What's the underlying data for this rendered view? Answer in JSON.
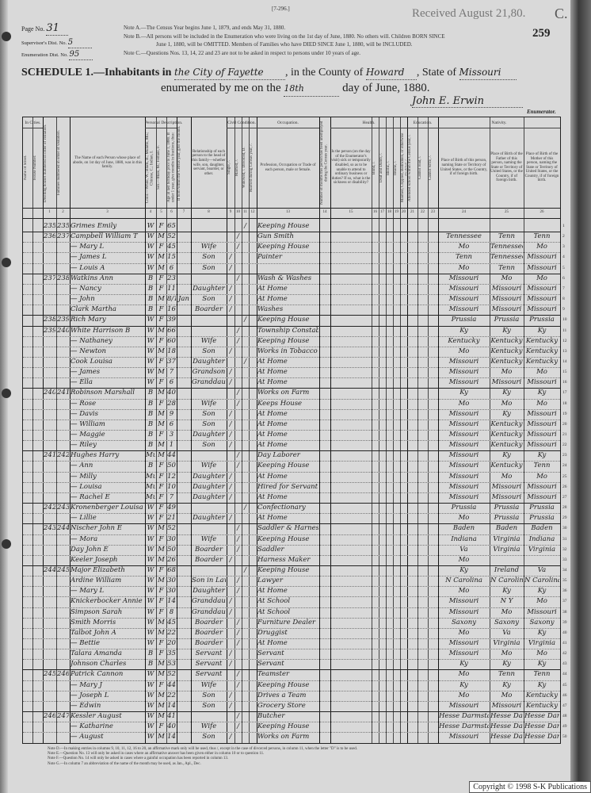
{
  "form_number": "[7-296.]",
  "received_stamp": "Received August 21,80.",
  "stamp_letter": "C.",
  "sheet_number": "259",
  "page_no": {
    "label": "Page No.",
    "value": "31"
  },
  "supervisor_dist": {
    "label": "Supervisor's Dist. No.",
    "value": "5"
  },
  "enumeration_dist": {
    "label": "Enumeration Dist. No.",
    "value": "95"
  },
  "notes_top": [
    "Note A.—The Census Year begins June 1, 1879, and ends May 31, 1880.",
    "Note B.—All persons will be included in the Enumeration who were living on the 1st day of June, 1880. No others will. Children BORN SINCE",
    "June 1, 1880, will be OMITTED. Members of Families who have DIED SINCE June 1, 1880, will be INCLUDED.",
    "Note C.—Questions Nos. 13, 14, 22 and 23 are not to be asked in respect to persons under 10 years of age."
  ],
  "schedule": {
    "prefix": "SCHEDULE 1.—Inhabitants in",
    "place": "the City of Fayette",
    "county_label": ", in the County of",
    "county": "Howard",
    "state_label": ", State of",
    "state": "Missouri",
    "enumerated_label": "enumerated by me on the",
    "day": "18th",
    "day_suffix": "day of June, 1880.",
    "enumerator_signature": "John E. Erwin",
    "enumerator_label": "Enumerator."
  },
  "column_groups": {
    "in_cities": "In Cities.",
    "personal": "Personal Description.",
    "civil": "Civil Condition.",
    "occupation": "Occupation.",
    "health": "Health.",
    "education": "Education.",
    "nativity": "Nativity."
  },
  "column_headers": {
    "street": "Name of Street.",
    "house": "House Number.",
    "c1": "Dwelling houses numbered in order of visitation.",
    "c2": "Families numbered in order of visitation.",
    "c3": "The Name of each Person whose place of abode, on 1st day of June, 1880, was in this family.",
    "c4": "Color.—White, W.; Black, B.; Mulatto, Mu.; Chinese, C.; Indian, I.",
    "c5": "Sex.—Male, M.; Female, F.",
    "c6": "Age at last birthday prior to June 1, 1880. If under 1 year, give months in fractions, thus: 3/12.",
    "c7": "If born within the Census year, give the month.",
    "c8": "Relationship of each person to the head of this family—whether wife, son, daughter, servant, boarder, or other.",
    "c9": "Single, /.",
    "c10": "Married, /.",
    "c11": "Widowed, /. Divorced, D.",
    "c12": "Married during Census year, /.",
    "c13": "Profession, Occupation or Trade of each person, male or female.",
    "c14": "Number of months this person has been unemployed during the Census year.",
    "c15": "Is the person (on the day of the Enumerator's visit) sick or temporarily disabled, so as to be unable to attend to ordinary business or duties? If so, what is the sickness or disability?",
    "c16": "Blind, /.",
    "c17": "Deaf and Dumb, /.",
    "c18": "Idiotic, /.",
    "c19": "Insane, /.",
    "c20": "Maimed, Crippled, Bedridden, or otherwise disabled, /.",
    "c21": "Attended school within the Census year, /.",
    "c22": "Cannot read, /.",
    "c23": "Cannot write, /.",
    "c24": "Place of Birth of this person, naming State or Territory of United States, or the Country, if of foreign birth.",
    "c25": "Place of Birth of the Father of this person, naming the State or Territory of United States, or the Country, if of foreign birth.",
    "c26": "Place of Birth of the Mother of this person, naming the State or Territory of United States, or the Country, if of foreign birth."
  },
  "column_numbers": [
    "1",
    "2",
    "3",
    "4",
    "5",
    "6",
    "7",
    "8",
    "9",
    "10",
    "11",
    "12",
    "13",
    "14",
    "15",
    "16",
    "17",
    "18",
    "19",
    "20",
    "21",
    "22",
    "23",
    "24",
    "25",
    "26"
  ],
  "rows": [
    {
      "line": "1",
      "dw": "235",
      "fam": "235",
      "name": "Grimes Emily",
      "color": "W",
      "sex": "F",
      "age": "65",
      "month": "",
      "rel": "",
      "cond": "11",
      "occ": "Keeping House",
      "bp": "",
      "fbp": "",
      "mbp": ""
    },
    {
      "line": "2",
      "dw": "236",
      "fam": "237",
      "name": "Campbell William T",
      "color": "W",
      "sex": "M",
      "age": "52",
      "month": "",
      "rel": "",
      "cond": "10",
      "occ": "Gun Smith",
      "bp": "Tennessee",
      "fbp": "Tenn",
      "mbp": "Tenn"
    },
    {
      "line": "3",
      "dw": "",
      "fam": "",
      "name": "— Mary L",
      "color": "W",
      "sex": "F",
      "age": "45",
      "month": "",
      "rel": "Wife",
      "cond": "10",
      "occ": "Keeping House",
      "bp": "Mo",
      "fbp": "Tennessee",
      "mbp": "Mo"
    },
    {
      "line": "4",
      "dw": "",
      "fam": "",
      "name": "— James L",
      "color": "W",
      "sex": "M",
      "age": "15",
      "month": "",
      "rel": "Son",
      "cond": "9",
      "occ": "Painter",
      "bp": "Tenn",
      "fbp": "Tennessee",
      "mbp": "Missouri"
    },
    {
      "line": "5",
      "dw": "",
      "fam": "",
      "name": "— Louis A",
      "color": "W",
      "sex": "M",
      "age": "6",
      "month": "",
      "rel": "Son",
      "cond": "9",
      "occ": "",
      "bp": "Mo",
      "fbp": "Tenn",
      "mbp": "Missouri"
    },
    {
      "line": "6",
      "dw": "237",
      "fam": "238",
      "name": "Watkins Ann",
      "color": "B",
      "sex": "F",
      "age": "23",
      "month": "",
      "rel": "",
      "cond": "10",
      "occ": "Wash & Washes",
      "bp": "Missouri",
      "fbp": "Mo",
      "mbp": "Mo"
    },
    {
      "line": "7",
      "dw": "",
      "fam": "",
      "name": "— Nancy",
      "color": "B",
      "sex": "F",
      "age": "11",
      "month": "",
      "rel": "Daughter",
      "cond": "9",
      "occ": "At Home",
      "bp": "Missouri",
      "fbp": "Missouri",
      "mbp": "Missouri"
    },
    {
      "line": "8",
      "dw": "",
      "fam": "",
      "name": "— John",
      "color": "B",
      "sex": "M",
      "age": "8/12",
      "month": "Jan",
      "rel": "Son",
      "cond": "9",
      "occ": "At Home",
      "bp": "Missouri",
      "fbp": "Missouri",
      "mbp": "Missouri"
    },
    {
      "line": "9",
      "dw": "",
      "fam": "",
      "name": "Clark Martha",
      "color": "B",
      "sex": "F",
      "age": "16",
      "month": "",
      "rel": "Boarder",
      "cond": "9",
      "occ": "Washes",
      "bp": "Missouri",
      "fbp": "Missouri",
      "mbp": "Missouri"
    },
    {
      "line": "10",
      "dw": "238",
      "fam": "239",
      "name": "Rich Mary",
      "color": "W",
      "sex": "F",
      "age": "39",
      "month": "",
      "rel": "",
      "cond": "11",
      "occ": "Keeping House",
      "bp": "Prussia",
      "fbp": "Prussia",
      "mbp": "Prussia"
    },
    {
      "line": "11",
      "dw": "239",
      "fam": "240",
      "name": "White Harrison B",
      "color": "W",
      "sex": "M",
      "age": "66",
      "month": "",
      "rel": "",
      "cond": "10",
      "occ": "Township Constable",
      "bp": "Ky",
      "fbp": "Ky",
      "mbp": "Ky"
    },
    {
      "line": "12",
      "dw": "",
      "fam": "",
      "name": "— Nathaney",
      "color": "W",
      "sex": "F",
      "age": "60",
      "month": "",
      "rel": "Wife",
      "cond": "10",
      "occ": "Keeping House",
      "bp": "Kentucky",
      "fbp": "Kentucky",
      "mbp": "Kentucky"
    },
    {
      "line": "13",
      "dw": "",
      "fam": "",
      "name": "— Newton",
      "color": "W",
      "sex": "M",
      "age": "18",
      "month": "",
      "rel": "Son",
      "cond": "9",
      "occ": "Works in Tobacco Fac",
      "bp": "Mo",
      "fbp": "Kentucky",
      "mbp": "Kentucky"
    },
    {
      "line": "14",
      "dw": "",
      "fam": "",
      "name": "Cook Louisa",
      "color": "W",
      "sex": "F",
      "age": "37",
      "month": "",
      "rel": "Daughter",
      "cond": "11",
      "occ": "At Home",
      "bp": "Missouri",
      "fbp": "Kentucky",
      "mbp": "Kentucky"
    },
    {
      "line": "15",
      "dw": "",
      "fam": "",
      "name": "— James",
      "color": "W",
      "sex": "M",
      "age": "7",
      "month": "",
      "rel": "Grandson",
      "cond": "9",
      "occ": "At Home",
      "bp": "Missouri",
      "fbp": "Mo",
      "mbp": "Mo"
    },
    {
      "line": "16",
      "dw": "",
      "fam": "",
      "name": "— Ella",
      "color": "W",
      "sex": "F",
      "age": "6",
      "month": "",
      "rel": "Granddaughter",
      "cond": "9",
      "occ": "At Home",
      "bp": "Missouri",
      "fbp": "Missouri",
      "mbp": "Missouri"
    },
    {
      "line": "17",
      "dw": "240",
      "fam": "241",
      "name": "Robinson Marshall",
      "color": "B",
      "sex": "M",
      "age": "40",
      "month": "",
      "rel": "",
      "cond": "10",
      "occ": "Works on Farm",
      "bp": "Ky",
      "fbp": "Ky",
      "mbp": "Ky"
    },
    {
      "line": "18",
      "dw": "",
      "fam": "",
      "name": "— Rose",
      "color": "B",
      "sex": "F",
      "age": "28",
      "month": "",
      "rel": "Wife",
      "cond": "10",
      "occ": "Keeps House",
      "bp": "Mo",
      "fbp": "Mo",
      "mbp": "Mo"
    },
    {
      "line": "19",
      "dw": "",
      "fam": "",
      "name": "— Davis",
      "color": "B",
      "sex": "M",
      "age": "9",
      "month": "",
      "rel": "Son",
      "cond": "9",
      "occ": "At Home",
      "bp": "Missouri",
      "fbp": "Ky",
      "mbp": "Missouri"
    },
    {
      "line": "20",
      "dw": "",
      "fam": "",
      "name": "— William",
      "color": "B",
      "sex": "M",
      "age": "6",
      "month": "",
      "rel": "Son",
      "cond": "9",
      "occ": "At Home",
      "bp": "Missouri",
      "fbp": "Kentucky",
      "mbp": "Missouri"
    },
    {
      "line": "21",
      "dw": "",
      "fam": "",
      "name": "— Maggie",
      "color": "B",
      "sex": "F",
      "age": "3",
      "month": "",
      "rel": "Daughter",
      "cond": "9",
      "occ": "At Home",
      "bp": "Missouri",
      "fbp": "Kentucky",
      "mbp": "Missouri"
    },
    {
      "line": "22",
      "dw": "",
      "fam": "",
      "name": "— Riley",
      "color": "B",
      "sex": "M",
      "age": "1",
      "month": "",
      "rel": "Son",
      "cond": "9",
      "occ": "At Home",
      "bp": "Missouri",
      "fbp": "Kentucky",
      "mbp": "Missouri"
    },
    {
      "line": "23",
      "dw": "241",
      "fam": "242",
      "name": "Hughes Harry",
      "color": "Mu",
      "sex": "M",
      "age": "44",
      "month": "",
      "rel": "",
      "cond": "10",
      "occ": "Day Laborer",
      "bp": "Missouri",
      "fbp": "Ky",
      "mbp": "Ky"
    },
    {
      "line": "24",
      "dw": "",
      "fam": "",
      "name": "— Ann",
      "color": "B",
      "sex": "F",
      "age": "50",
      "month": "",
      "rel": "Wife",
      "cond": "10",
      "occ": "Keeping House",
      "bp": "Missouri",
      "fbp": "Kentucky",
      "mbp": "Tenn"
    },
    {
      "line": "25",
      "dw": "",
      "fam": "",
      "name": "— Milly",
      "color": "Mu",
      "sex": "F",
      "age": "12",
      "month": "",
      "rel": "Daughter",
      "cond": "9",
      "occ": "At Home",
      "bp": "Missouri",
      "fbp": "Mo",
      "mbp": "Mo"
    },
    {
      "line": "26",
      "dw": "",
      "fam": "",
      "name": "— Louisa",
      "color": "Mu",
      "sex": "F",
      "age": "10",
      "month": "",
      "rel": "Daughter",
      "cond": "9",
      "occ": "Hired for Servant",
      "bp": "Missouri",
      "fbp": "Missouri",
      "mbp": "Missouri"
    },
    {
      "line": "27",
      "dw": "",
      "fam": "",
      "name": "— Rachel E",
      "color": "Mu",
      "sex": "F",
      "age": "7",
      "month": "",
      "rel": "Daughter",
      "cond": "9",
      "occ": "At Home",
      "bp": "Missouri",
      "fbp": "Missouri",
      "mbp": "Missouri"
    },
    {
      "line": "28",
      "dw": "242",
      "fam": "243",
      "name": "Kronenberger Louisa",
      "color": "W",
      "sex": "F",
      "age": "49",
      "month": "",
      "rel": "",
      "cond": "11",
      "occ": "Confectionary",
      "bp": "Prussia",
      "fbp": "Prussia",
      "mbp": "Prussia"
    },
    {
      "line": "29",
      "dw": "",
      "fam": "",
      "name": "— Lillie",
      "color": "W",
      "sex": "F",
      "age": "21",
      "month": "",
      "rel": "Daughter",
      "cond": "9",
      "occ": "At Home",
      "bp": "Mo",
      "fbp": "Prussia",
      "mbp": "Prussia"
    },
    {
      "line": "30",
      "dw": "243",
      "fam": "244",
      "name": "Nischer John E",
      "color": "W",
      "sex": "M",
      "age": "52",
      "month": "",
      "rel": "",
      "cond": "10",
      "occ": "Saddler & Harness",
      "bp": "Baden",
      "fbp": "Baden",
      "mbp": "Baden"
    },
    {
      "line": "31",
      "dw": "",
      "fam": "",
      "name": "— Mora",
      "color": "W",
      "sex": "F",
      "age": "30",
      "month": "",
      "rel": "Wife",
      "cond": "10",
      "occ": "Keeping House",
      "bp": "Indiana",
      "fbp": "Virginia",
      "mbp": "Indiana"
    },
    {
      "line": "32",
      "dw": "",
      "fam": "",
      "name": "Day John E",
      "color": "W",
      "sex": "M",
      "age": "50",
      "month": "",
      "rel": "Boarder",
      "cond": "10",
      "occ": "Saddler",
      "bp": "Va",
      "fbp": "Virginia",
      "mbp": "Virginia"
    },
    {
      "line": "33",
      "dw": "",
      "fam": "",
      "name": "Keeler Joseph",
      "color": "W",
      "sex": "M",
      "age": "26",
      "month": "",
      "rel": "Boarder",
      "cond": "9",
      "occ": "Harness Maker",
      "bp": "Mo",
      "fbp": "",
      "mbp": ""
    },
    {
      "line": "34",
      "dw": "244",
      "fam": "245",
      "name": "Major Elizabeth",
      "color": "W",
      "sex": "F",
      "age": "68",
      "month": "",
      "rel": "",
      "cond": "11",
      "occ": "Keeping House",
      "bp": "Ky",
      "fbp": "Ireland",
      "mbp": "Va"
    },
    {
      "line": "35",
      "dw": "",
      "fam": "",
      "name": "Ardine William",
      "color": "W",
      "sex": "M",
      "age": "30",
      "month": "",
      "rel": "Son in Law",
      "cond": "10",
      "occ": "Lawyer",
      "bp": "N Carolina",
      "fbp": "N Carolina",
      "mbp": "N Carolina"
    },
    {
      "line": "36",
      "dw": "",
      "fam": "",
      "name": "— Mary L",
      "color": "W",
      "sex": "F",
      "age": "30",
      "month": "",
      "rel": "Daughter",
      "cond": "10",
      "occ": "At Home",
      "bp": "Mo",
      "fbp": "Ky",
      "mbp": "Ky"
    },
    {
      "line": "37",
      "dw": "",
      "fam": "",
      "name": "Knickerbocker Annie",
      "color": "W",
      "sex": "F",
      "age": "14",
      "month": "",
      "rel": "Granddaughter",
      "cond": "9",
      "occ": "At School",
      "bp": "Missouri",
      "fbp": "N Y",
      "mbp": "Mo"
    },
    {
      "line": "38",
      "dw": "",
      "fam": "",
      "name": "Simpson Sarah",
      "color": "W",
      "sex": "F",
      "age": "8",
      "month": "",
      "rel": "Granddaughter",
      "cond": "9",
      "occ": "At School",
      "bp": "Missouri",
      "fbp": "Mo",
      "mbp": "Missouri"
    },
    {
      "line": "39",
      "dw": "",
      "fam": "",
      "name": "Smith Morris",
      "color": "W",
      "sex": "M",
      "age": "45",
      "month": "",
      "rel": "Boarder",
      "cond": "10",
      "occ": "Furniture Dealer",
      "bp": "Saxony",
      "fbp": "Saxony",
      "mbp": "Saxony"
    },
    {
      "line": "40",
      "dw": "",
      "fam": "",
      "name": "Talbot John A",
      "color": "W",
      "sex": "M",
      "age": "22",
      "month": "",
      "rel": "Boarder",
      "cond": "10",
      "occ": "Druggist",
      "bp": "Mo",
      "fbp": "Va",
      "mbp": "Ky"
    },
    {
      "line": "41",
      "dw": "",
      "fam": "",
      "name": "— Bettie",
      "color": "W",
      "sex": "F",
      "age": "20",
      "month": "",
      "rel": "Boarder",
      "cond": "10",
      "occ": "At Home",
      "bp": "Missouri",
      "fbp": "Virginia",
      "mbp": "Virginia"
    },
    {
      "line": "42",
      "dw": "",
      "fam": "",
      "name": "Talara Amanda",
      "color": "B",
      "sex": "F",
      "age": "35",
      "month": "",
      "rel": "Servant",
      "cond": "9",
      "occ": "Servant",
      "bp": "Missouri",
      "fbp": "Mo",
      "mbp": "Mo"
    },
    {
      "line": "43",
      "dw": "",
      "fam": "",
      "name": "Johnson Charles",
      "color": "B",
      "sex": "M",
      "age": "53",
      "month": "",
      "rel": "Servant",
      "cond": "9",
      "occ": "Servant",
      "bp": "Ky",
      "fbp": "Ky",
      "mbp": "Ky"
    },
    {
      "line": "44",
      "dw": "245",
      "fam": "246",
      "name": "Patrick Cannon",
      "color": "W",
      "sex": "M",
      "age": "52",
      "month": "",
      "rel": "Servant",
      "cond": "10",
      "occ": "Teamster",
      "bp": "Mo",
      "fbp": "Tenn",
      "mbp": "Tenn"
    },
    {
      "line": "45",
      "dw": "",
      "fam": "",
      "name": "— Mary J",
      "color": "W",
      "sex": "F",
      "age": "44",
      "month": "",
      "rel": "Wife",
      "cond": "10",
      "occ": "Keeping House",
      "bp": "Ky",
      "fbp": "Ky",
      "mbp": "Ky"
    },
    {
      "line": "46",
      "dw": "",
      "fam": "",
      "name": "— Joseph L",
      "color": "W",
      "sex": "M",
      "age": "22",
      "month": "",
      "rel": "Son",
      "cond": "9",
      "occ": "Drives a Team",
      "bp": "Mo",
      "fbp": "Mo",
      "mbp": "Kentucky"
    },
    {
      "line": "47",
      "dw": "",
      "fam": "",
      "name": "— Edwin",
      "color": "W",
      "sex": "M",
      "age": "14",
      "month": "",
      "rel": "Son",
      "cond": "9",
      "occ": "Grocery Store",
      "bp": "Missouri",
      "fbp": "Missouri",
      "mbp": "Kentucky"
    },
    {
      "line": "48",
      "dw": "246",
      "fam": "247",
      "name": "Kessler August",
      "color": "W",
      "sex": "M",
      "age": "41",
      "month": "",
      "rel": "",
      "cond": "10",
      "occ": "Butcher",
      "bp": "Hesse Darmstadt",
      "fbp": "Hesse Darm",
      "mbp": "Hesse Dar"
    },
    {
      "line": "49",
      "dw": "",
      "fam": "",
      "name": "— Katharine",
      "color": "W",
      "sex": "F",
      "age": "40",
      "month": "",
      "rel": "Wife",
      "cond": "10",
      "occ": "Keeping House",
      "bp": "Hesse Darmstadt",
      "fbp": "Hesse Darmstadt",
      "mbp": "Hesse Darmstadt"
    },
    {
      "line": "50",
      "dw": "",
      "fam": "",
      "name": "— August",
      "color": "W",
      "sex": "M",
      "age": "14",
      "month": "",
      "rel": "Son",
      "cond": "9",
      "occ": "Works on Farm",
      "bp": "Missouri",
      "fbp": "Hesse Darm",
      "mbp": "Hesse Darmstadt"
    }
  ],
  "notes_bottom": [
    "Note D.—In making entries in columns 9, 10, 11, 12, 16 to 20, an affirmative mark only will be used, thus /, except in the case of divorced persons, in column 11, when the letter \"D\" is to be used.",
    "Note E.—Question No. 13 will only be asked in cases where an affirmative answer has been given either in column 10 or to question 11.",
    "Note F.—Question No. 14 will only be asked in cases where a gainful occupation has been reported in column 13.",
    "Note G.—In column 7 an abbreviation of the name of the month may be used, as Jan., Apl., Dec."
  ],
  "copyright": "Copyright © 1998 S-K Publications",
  "colors": {
    "paper": "#d9d9d9",
    "ink": "#1d1d1d",
    "edge": "#3a3a3a"
  }
}
